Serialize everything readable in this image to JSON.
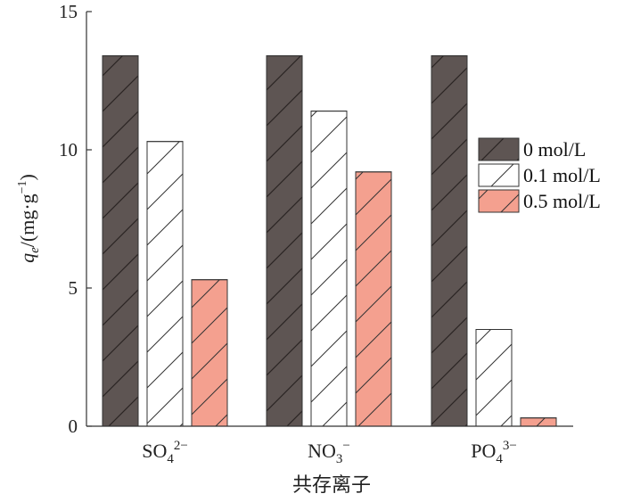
{
  "chart_data": {
    "type": "bar",
    "categories": [
      {
        "base": "SO",
        "sub": "4",
        "sup": "2−"
      },
      {
        "base": "NO",
        "sub": "3",
        "sup": "−"
      },
      {
        "base": "PO",
        "sub": "4",
        "sup": "3−"
      }
    ],
    "series": [
      {
        "name": "0 mol/L",
        "values": [
          13.4,
          13.4,
          13.4
        ],
        "color": "#5e5553",
        "pattern": "hatch-dark"
      },
      {
        "name": "0.1 mol/L",
        "values": [
          10.3,
          11.4,
          3.5
        ],
        "color": "#ffffff",
        "pattern": "hatch-light"
      },
      {
        "name": "0.5 mol/L",
        "values": [
          5.3,
          9.2,
          0.3
        ],
        "color": "#f4a08f",
        "pattern": "hatch-light"
      }
    ],
    "ylim": [
      0,
      15
    ],
    "yticks": [
      0,
      5,
      10,
      15
    ],
    "ylabel": {
      "base": "q",
      "sub": "e",
      "rest": "/(mg·g",
      "sup": "−1",
      "close": ")"
    },
    "xlabel": "共存离子",
    "legend": "right"
  }
}
